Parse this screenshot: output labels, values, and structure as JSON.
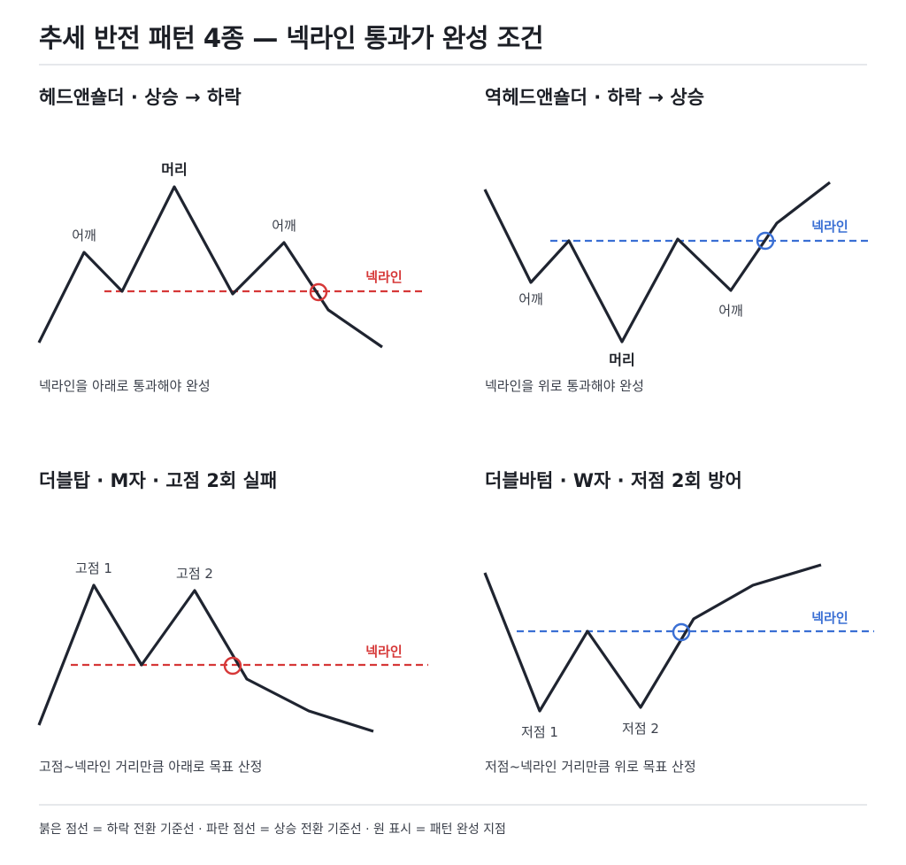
{
  "title": "추세 반전 패턴 4종 — 넥라인 통과가 완성 조건",
  "colors": {
    "bearish_neck": "#d63838",
    "bullish_neck": "#3a6fd4",
    "price_line": "#1f2430"
  },
  "panels": [
    {
      "title": "헤드앤숄더 · 상승 → 하락",
      "caption": "넥라인을 아래로 통과해야 완성",
      "labels": {
        "left": "어깨",
        "center": "머리",
        "right": "어깨",
        "neckline": "넥라인"
      }
    },
    {
      "title": "역헤드앤숄더 · 하락 → 상승",
      "caption": "넥라인을 위로 통과해야 완성",
      "labels": {
        "left": "어깨",
        "center": "머리",
        "right": "어깨",
        "neckline": "넥라인"
      }
    },
    {
      "title": "더블탑 · M자 · 고점 2회 실패",
      "caption": "고점~넥라인 거리만큼 아래로 목표 산정",
      "labels": {
        "first": "고점 1",
        "second": "고점 2",
        "neckline": "넥라인"
      }
    },
    {
      "title": "더블바텀 · W자 · 저점 2회 방어",
      "caption": "저점~넥라인 거리만큼 위로 목표 산정",
      "labels": {
        "first": "저점 1",
        "second": "저점 2",
        "neckline": "넥라인"
      }
    }
  ],
  "footer": "붉은 점선 = 하락 전환 기준선 · 파란 점선 = 상승 전환 기준선 · 원 표시 = 패턴 완성 지점"
}
